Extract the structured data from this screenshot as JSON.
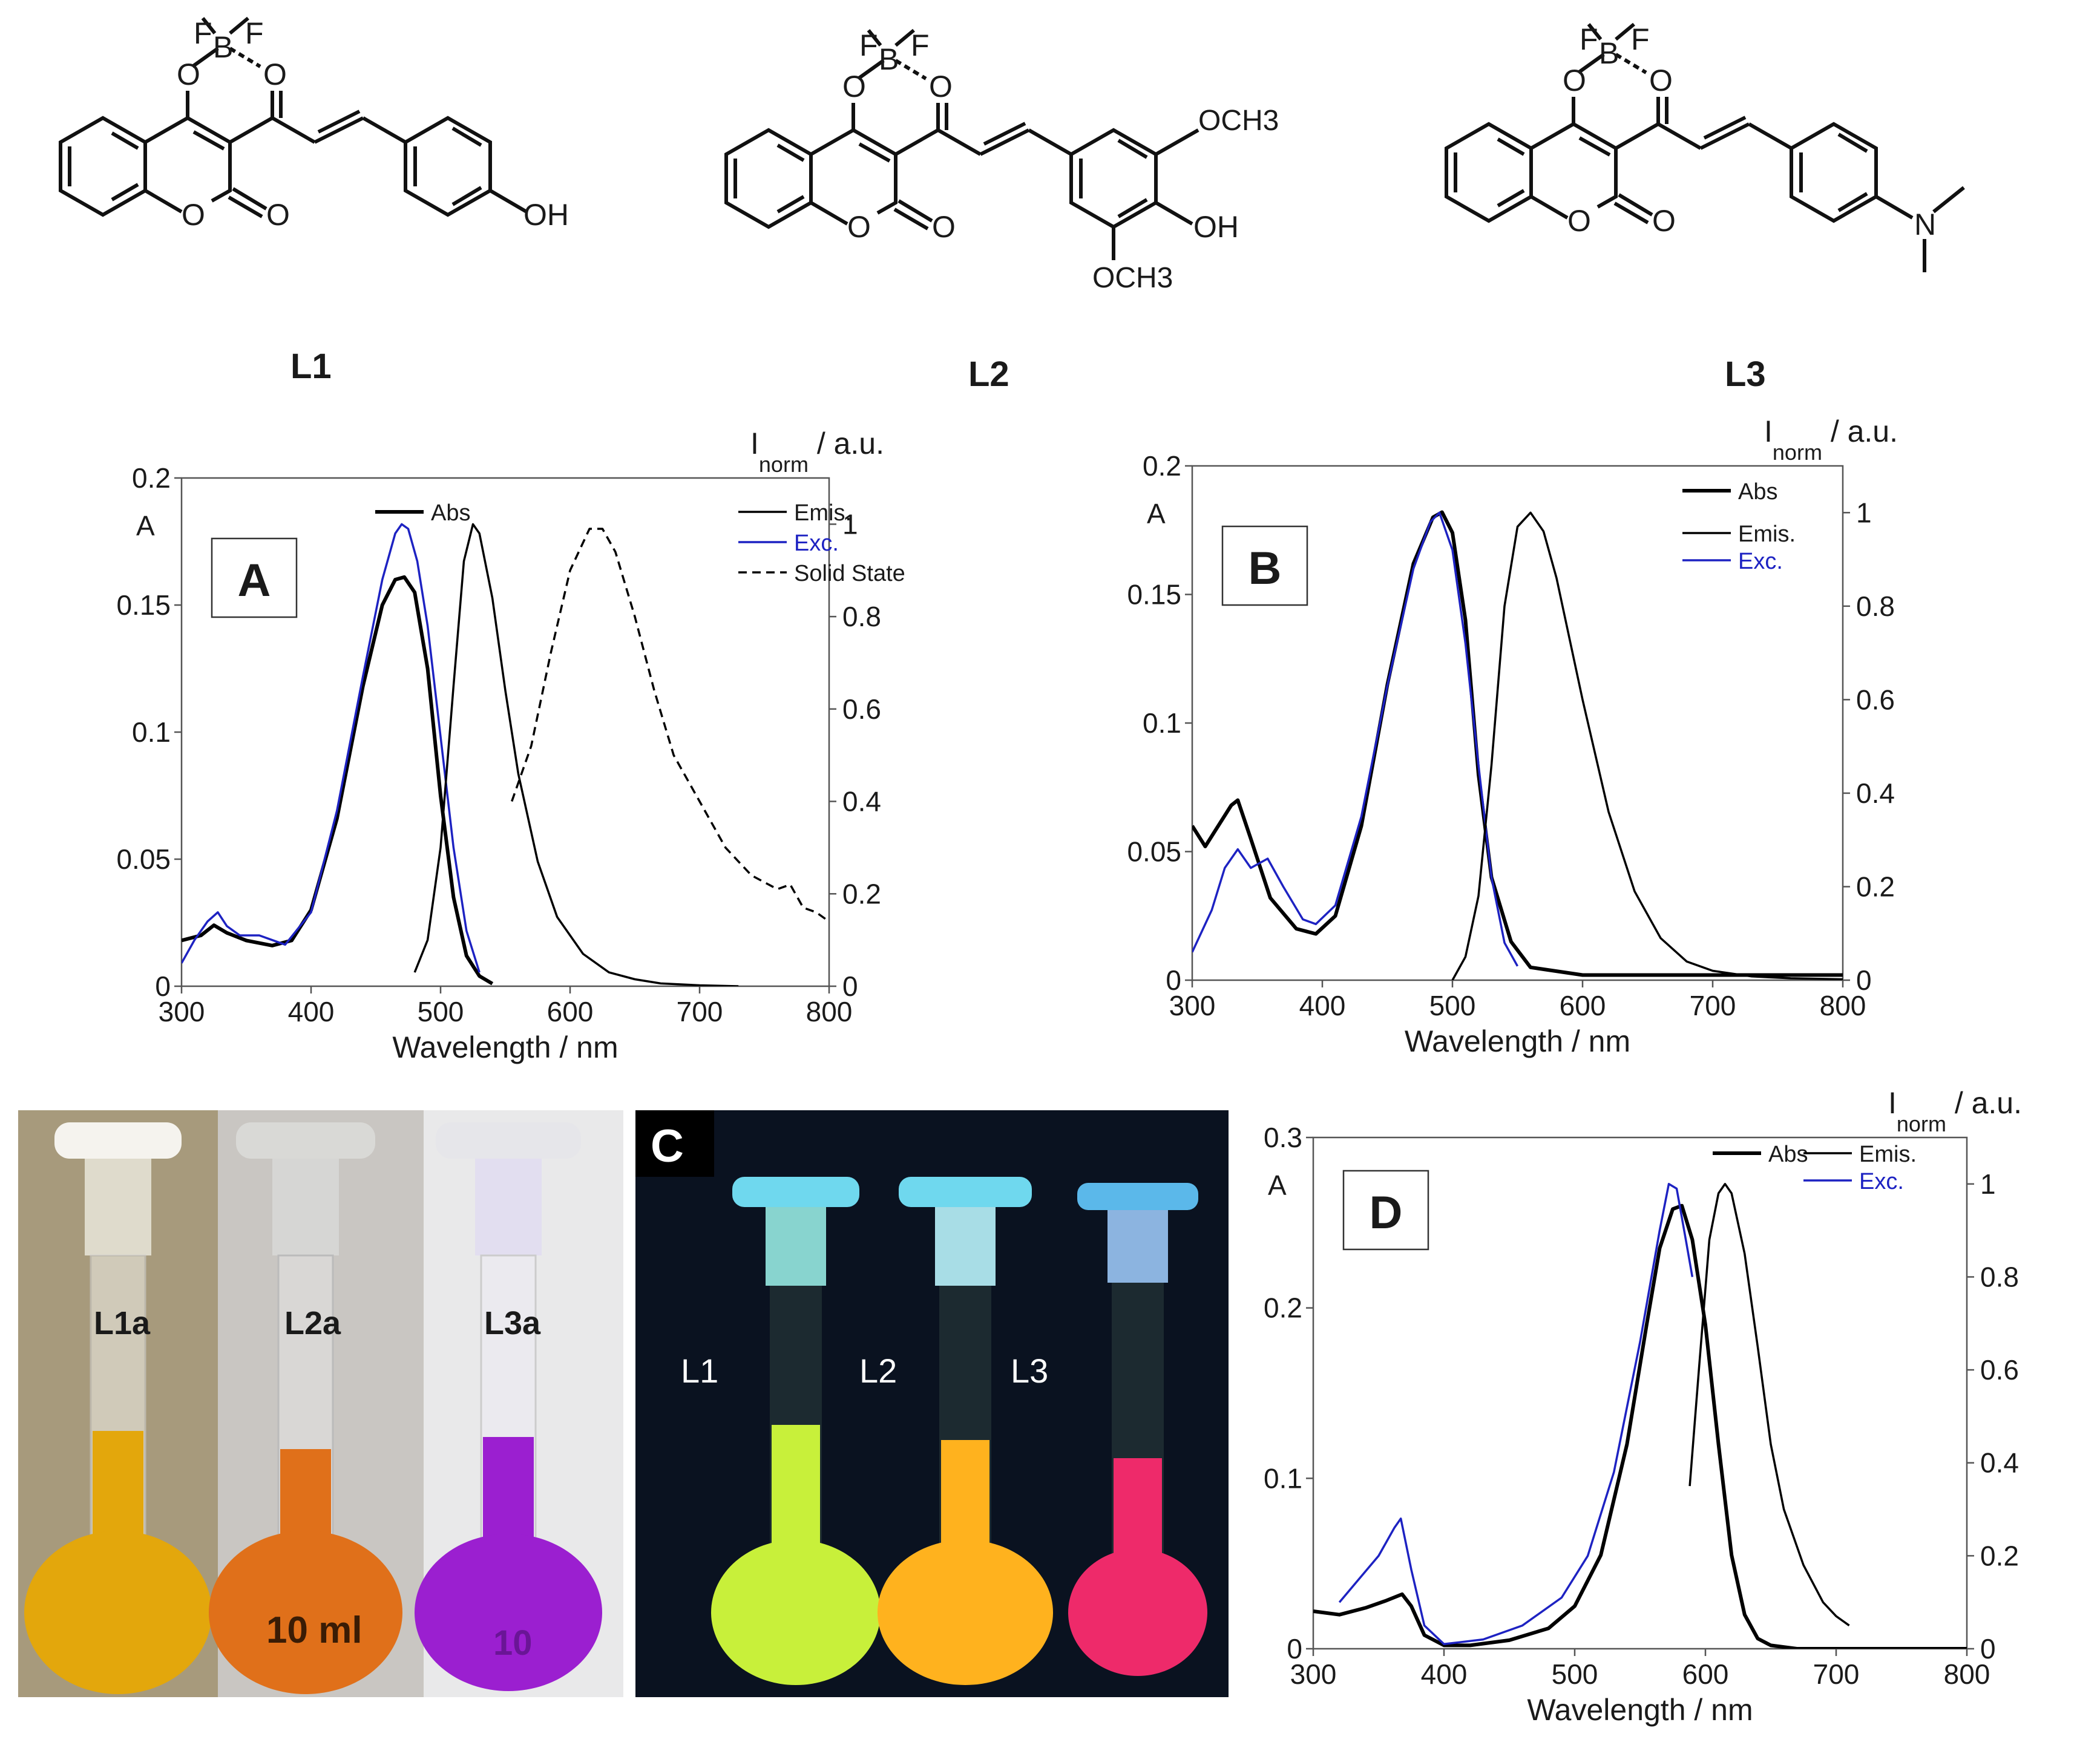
{
  "structures": [
    {
      "label": "L1",
      "atoms": {
        "f1": "F",
        "f2": "F",
        "b": "B",
        "o1": "O",
        "o2": "O",
        "o3": "O",
        "o4": "O",
        "o5": "O",
        "sub": "OH"
      }
    },
    {
      "label": "L2",
      "atoms": {
        "f1": "F",
        "f2": "F",
        "b": "B",
        "o1": "O",
        "o2": "O",
        "o3": "O",
        "o4": "O",
        "o5": "O",
        "sub_top": "OCH3",
        "sub_mid": "OH",
        "sub_bot": "OCH3"
      }
    },
    {
      "label": "L3",
      "atoms": {
        "f1": "F",
        "f2": "F",
        "b": "B",
        "o1": "O",
        "o2": "O",
        "o3": "O",
        "o4": "O",
        "o5": "O",
        "sub": "N"
      }
    }
  ],
  "photos": {
    "daylight": {
      "labels": [
        "L1a",
        "L2a",
        "L3a"
      ],
      "flask_text": [
        "10 ml",
        "10"
      ],
      "colors": [
        "#e3a70c",
        "#e0701a",
        "#9b1fd0"
      ]
    },
    "uv": {
      "panel_label": "C",
      "labels": [
        "L1",
        "L2",
        "L3"
      ],
      "colors": [
        "#c8f03a",
        "#ffb21e",
        "#ee2a6a"
      ]
    }
  },
  "chart_data": [
    {
      "panel": "A",
      "type": "line",
      "xlabel": "Wavelength / nm",
      "ylabel_left": "A",
      "ylabel_right": "I_norm / a.u.",
      "right_label_main": "I",
      "right_label_sub": "norm",
      "right_label_rest": " / a.u.",
      "xlim": [
        300,
        800
      ],
      "ylim_left": [
        0,
        0.2
      ],
      "ylim_right": [
        0,
        1.1
      ],
      "xticks": [
        "300",
        "400",
        "500",
        "600",
        "700",
        "800"
      ],
      "yticks_left": [
        "0",
        "0.05",
        "0.1",
        "0.15",
        "0.2"
      ],
      "yticks_right": [
        "0",
        "0.2",
        "0.4",
        "0.6",
        "0.8",
        "1"
      ],
      "legend": [
        "Abs",
        "Emis.",
        "Exc.",
        "Solid State"
      ],
      "series": [
        {
          "name": "Abs",
          "axis": "left",
          "color": "#000000",
          "style": "thick",
          "x": [
            300,
            315,
            325,
            335,
            350,
            370,
            385,
            400,
            420,
            440,
            455,
            465,
            472,
            480,
            490,
            500,
            510,
            520,
            530,
            540
          ],
          "y": [
            0.018,
            0.02,
            0.024,
            0.021,
            0.018,
            0.016,
            0.018,
            0.03,
            0.066,
            0.118,
            0.15,
            0.16,
            0.161,
            0.155,
            0.125,
            0.075,
            0.035,
            0.012,
            0.004,
            0.001
          ]
        },
        {
          "name": "Exc.",
          "axis": "right",
          "color": "#1d22c2",
          "style": "thin",
          "x": [
            300,
            310,
            320,
            328,
            335,
            345,
            360,
            380,
            400,
            420,
            440,
            455,
            465,
            470,
            475,
            482,
            490,
            500,
            510,
            520,
            530
          ],
          "y": [
            0.05,
            0.1,
            0.14,
            0.16,
            0.13,
            0.11,
            0.11,
            0.09,
            0.16,
            0.38,
            0.67,
            0.88,
            0.98,
            1.0,
            0.99,
            0.92,
            0.78,
            0.54,
            0.3,
            0.12,
            0.03
          ]
        },
        {
          "name": "Emis.",
          "axis": "right",
          "color": "#000000",
          "style": "thin",
          "x": [
            480,
            490,
            500,
            510,
            518,
            525,
            530,
            540,
            550,
            560,
            575,
            590,
            610,
            630,
            650,
            670,
            700,
            730
          ],
          "y": [
            0.03,
            0.1,
            0.3,
            0.65,
            0.92,
            1.0,
            0.98,
            0.84,
            0.64,
            0.46,
            0.27,
            0.15,
            0.07,
            0.03,
            0.015,
            0.006,
            0.002,
            0.0
          ]
        },
        {
          "name": "Solid State",
          "axis": "right",
          "color": "#000000",
          "style": "dashed",
          "x": [
            555,
            570,
            585,
            600,
            615,
            625,
            635,
            650,
            665,
            680,
            700,
            720,
            740,
            760,
            770,
            780,
            790,
            800
          ],
          "y": [
            0.4,
            0.52,
            0.72,
            0.9,
            0.99,
            0.99,
            0.94,
            0.8,
            0.64,
            0.5,
            0.4,
            0.3,
            0.24,
            0.21,
            0.22,
            0.17,
            0.16,
            0.14
          ]
        }
      ]
    },
    {
      "panel": "B",
      "type": "line",
      "xlabel": "Wavelength / nm",
      "ylabel_left": "A",
      "ylabel_right": "I_norm / a.u.",
      "right_label_main": "I",
      "right_label_sub": "norm",
      "right_label_rest": " / a.u.",
      "xlim": [
        300,
        800
      ],
      "ylim_left": [
        0,
        0.2
      ],
      "ylim_right": [
        0,
        1.1
      ],
      "xticks": [
        "300",
        "400",
        "500",
        "600",
        "700",
        "800"
      ],
      "yticks_left": [
        "0",
        "0.05",
        "0.1",
        "0.15",
        "0.2"
      ],
      "yticks_right": [
        "0",
        "0.2",
        "0.4",
        "0.6",
        "0.8",
        "1"
      ],
      "legend": [
        "Abs",
        "Emis.",
        "Exc."
      ],
      "series": [
        {
          "name": "Abs",
          "axis": "left",
          "color": "#000000",
          "style": "thick",
          "x": [
            300,
            310,
            320,
            330,
            335,
            345,
            360,
            380,
            395,
            410,
            430,
            450,
            470,
            485,
            492,
            500,
            510,
            520,
            530,
            545,
            560,
            600,
            700,
            800
          ],
          "y": [
            0.06,
            0.052,
            0.06,
            0.068,
            0.07,
            0.055,
            0.032,
            0.02,
            0.018,
            0.025,
            0.06,
            0.115,
            0.162,
            0.18,
            0.182,
            0.174,
            0.14,
            0.08,
            0.04,
            0.015,
            0.005,
            0.002,
            0.002,
            0.002
          ]
        },
        {
          "name": "Exc.",
          "axis": "right",
          "color": "#1d22c2",
          "style": "thin",
          "x": [
            300,
            315,
            325,
            335,
            345,
            358,
            370,
            385,
            395,
            410,
            430,
            450,
            470,
            483,
            490,
            500,
            510,
            520,
            530,
            540,
            550
          ],
          "y": [
            0.06,
            0.15,
            0.24,
            0.28,
            0.24,
            0.26,
            0.2,
            0.13,
            0.12,
            0.16,
            0.35,
            0.63,
            0.88,
            0.98,
            1.0,
            0.92,
            0.72,
            0.46,
            0.22,
            0.08,
            0.03
          ]
        },
        {
          "name": "Emis.",
          "axis": "right",
          "color": "#000000",
          "style": "thin",
          "x": [
            500,
            510,
            520,
            530,
            540,
            550,
            560,
            570,
            580,
            600,
            620,
            640,
            660,
            680,
            700,
            730,
            760,
            800
          ],
          "y": [
            0.0,
            0.05,
            0.18,
            0.46,
            0.8,
            0.97,
            1.0,
            0.96,
            0.86,
            0.6,
            0.36,
            0.19,
            0.09,
            0.04,
            0.02,
            0.008,
            0.004,
            0.002
          ]
        }
      ]
    },
    {
      "panel": "D",
      "type": "line",
      "xlabel": "Wavelength / nm",
      "ylabel_left": "A",
      "ylabel_right": "I_norm / a.u.",
      "right_label_main": "I",
      "right_label_sub": "norm",
      "right_label_rest": " / a.u.",
      "xlim": [
        300,
        800
      ],
      "ylim_left": [
        0,
        0.3
      ],
      "ylim_right": [
        0,
        1.1
      ],
      "xticks": [
        "300",
        "400",
        "500",
        "600",
        "700",
        "800"
      ],
      "yticks_left": [
        "0",
        "0.1",
        "0.2",
        "0.3"
      ],
      "yticks_right": [
        "0",
        "0.2",
        "0.4",
        "0.6",
        "0.8",
        "1"
      ],
      "legend": [
        "Abs",
        "Emis.",
        "Exc."
      ],
      "series": [
        {
          "name": "Abs",
          "axis": "left",
          "color": "#000000",
          "style": "thick",
          "x": [
            300,
            320,
            340,
            355,
            368,
            375,
            385,
            400,
            420,
            450,
            480,
            500,
            520,
            540,
            555,
            565,
            575,
            582,
            590,
            600,
            610,
            620,
            630,
            640,
            650,
            670,
            700,
            750,
            800
          ],
          "y": [
            0.022,
            0.02,
            0.024,
            0.028,
            0.032,
            0.025,
            0.008,
            0.002,
            0.002,
            0.005,
            0.012,
            0.025,
            0.055,
            0.12,
            0.19,
            0.235,
            0.258,
            0.26,
            0.24,
            0.19,
            0.12,
            0.055,
            0.02,
            0.006,
            0.002,
            0.0,
            0.0,
            0.0,
            0.0
          ]
        },
        {
          "name": "Exc.",
          "axis": "right",
          "color": "#1d22c2",
          "style": "thin",
          "x": [
            320,
            335,
            350,
            362,
            367,
            375,
            385,
            400,
            430,
            460,
            490,
            510,
            530,
            550,
            565,
            572,
            578,
            585,
            590
          ],
          "y": [
            0.1,
            0.15,
            0.2,
            0.26,
            0.28,
            0.17,
            0.05,
            0.01,
            0.02,
            0.05,
            0.11,
            0.2,
            0.38,
            0.66,
            0.9,
            1.0,
            0.99,
            0.88,
            0.8
          ]
        },
        {
          "name": "Emis.",
          "axis": "right",
          "color": "#000000",
          "style": "thin",
          "x": [
            588,
            595,
            603,
            610,
            615,
            620,
            630,
            640,
            650,
            660,
            675,
            690,
            700,
            710
          ],
          "y": [
            0.35,
            0.6,
            0.88,
            0.98,
            1.0,
            0.98,
            0.85,
            0.65,
            0.44,
            0.3,
            0.18,
            0.1,
            0.07,
            0.05
          ]
        }
      ]
    }
  ]
}
